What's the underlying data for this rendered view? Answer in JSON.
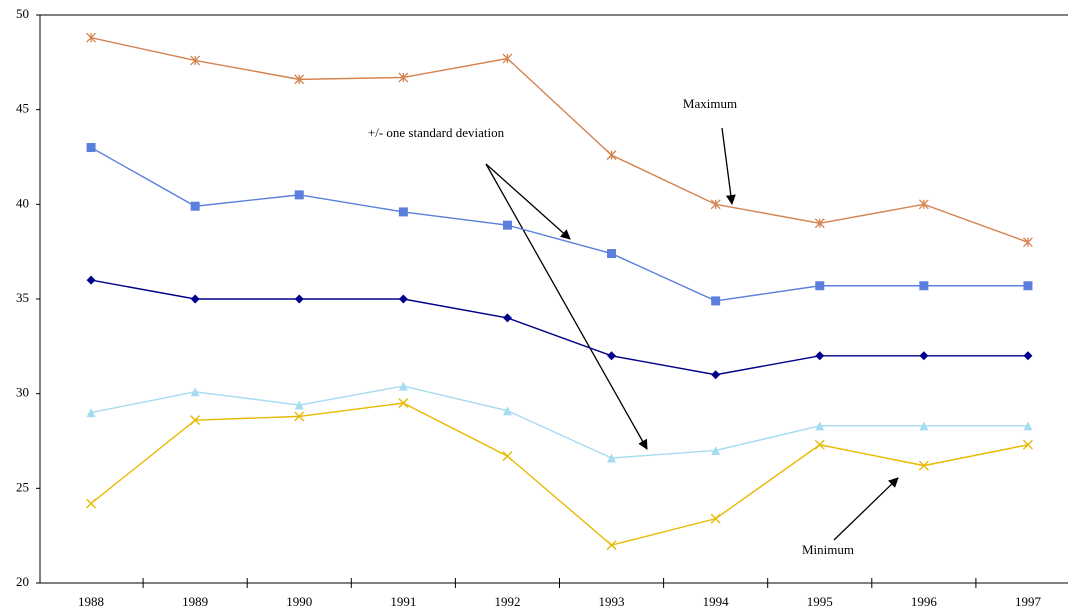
{
  "chart_data": {
    "type": "line",
    "categories": [
      "1988",
      "1989",
      "1990",
      "1991",
      "1992",
      "1993",
      "1994",
      "1995",
      "1996",
      "1997"
    ],
    "series": [
      {
        "color": "#d4834f",
        "marker": "star",
        "values": [
          48.8,
          47.6,
          46.6,
          46.7,
          47.7,
          42.6,
          40.0,
          39.0,
          40.0,
          38.0
        ]
      },
      {
        "color": "#5b7fdc",
        "marker": "square",
        "values": [
          43.0,
          39.9,
          40.5,
          39.6,
          38.9,
          37.4,
          34.9,
          35.7,
          35.7,
          35.7
        ]
      },
      {
        "color": "#00008b",
        "marker": "diamond",
        "values": [
          36.0,
          35.0,
          35.0,
          35.0,
          34.0,
          32.0,
          31.0,
          32.0,
          32.0,
          32.0
        ]
      },
      {
        "color": "#a6dcf0",
        "marker": "triangle",
        "values": [
          29.0,
          30.1,
          29.4,
          30.4,
          29.1,
          26.6,
          27.0,
          28.3,
          28.3,
          28.3
        ]
      },
      {
        "color": "#e8b900",
        "marker": "x",
        "values": [
          24.2,
          28.6,
          28.8,
          29.5,
          26.7,
          22.0,
          23.4,
          27.3,
          26.2,
          27.3
        ]
      }
    ],
    "ylim": [
      20,
      50
    ],
    "yticks": [
      20,
      25,
      30,
      35,
      40,
      45,
      50
    ],
    "grid": false,
    "annotations": [
      "Maximum",
      "+/- one standard deviation",
      "Minimum"
    ]
  }
}
